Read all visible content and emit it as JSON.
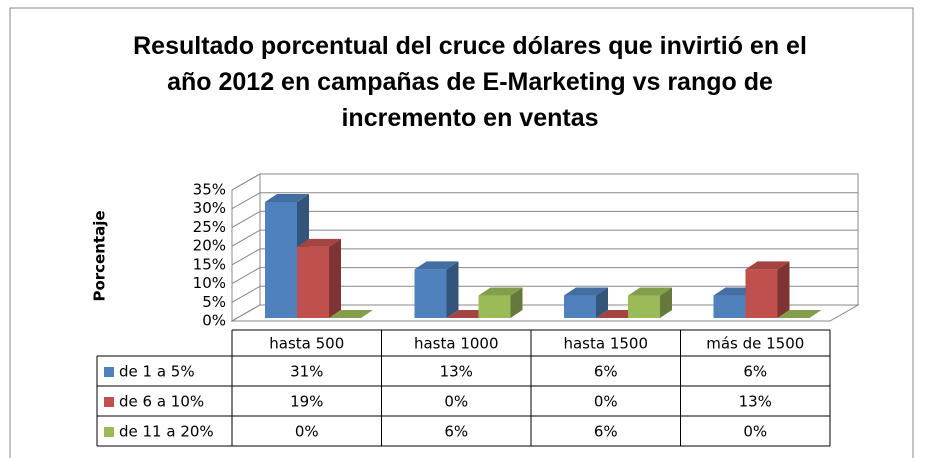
{
  "chart_data": {
    "type": "bar3d",
    "title": "Resultado porcentual del cruce dólares que invirtió en el año 2012 en campañas de E-Marketing vs rango de incremento en ventas",
    "ylabel": "Porcentaje",
    "categories": [
      "hasta 500",
      "hasta 1000",
      "hasta 1500",
      "más de 1500"
    ],
    "series": [
      {
        "name": "de 1 a 5%",
        "color": "#4f81bd",
        "values": [
          31,
          13,
          6,
          6
        ],
        "value_labels": [
          "31%",
          "13%",
          "6%",
          "6%"
        ]
      },
      {
        "name": "de 6 a 10%",
        "color": "#c0504d",
        "values": [
          19,
          0,
          0,
          13
        ],
        "value_labels": [
          "19%",
          "0%",
          "0%",
          "13%"
        ]
      },
      {
        "name": "de 11 a 20%",
        "color": "#9bbb59",
        "values": [
          0,
          6,
          6,
          0
        ],
        "value_labels": [
          "0%",
          "6%",
          "6%",
          "0%"
        ]
      }
    ],
    "ylim": [
      0,
      35
    ],
    "yticks": [
      {
        "value": 0,
        "label": "0%"
      },
      {
        "value": 5,
        "label": "5%"
      },
      {
        "value": 10,
        "label": "10%"
      },
      {
        "value": 15,
        "label": "15%"
      },
      {
        "value": 20,
        "label": "20%"
      },
      {
        "value": 25,
        "label": "25%"
      },
      {
        "value": 30,
        "label": "30%"
      },
      {
        "value": 35,
        "label": "35%"
      }
    ],
    "grid": true
  }
}
